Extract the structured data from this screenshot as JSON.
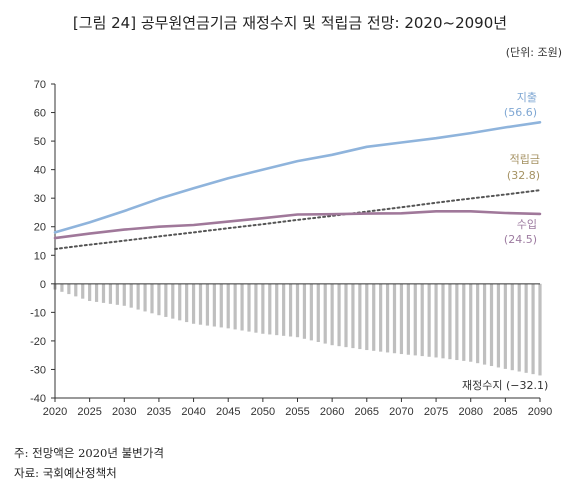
{
  "header": {
    "title": "[그림 24] 공무원연금기금 재정수지 및 적립금 전망: 2020~2090년",
    "unit": "(단위: 조원)"
  },
  "notes": {
    "note1": "주: 전망액은 2020년 불변가격",
    "note2": "자료: 국회예산정책처"
  },
  "colors": {
    "expenditure": "#8fb4dc",
    "revenue": "#a0789a",
    "reserve": "#555555",
    "balance": "#bfbfbf",
    "axis": "#333333",
    "label_expenditure": "#7fa7d3",
    "label_reserve": "#a59263",
    "label_revenue": "#9d7ba0"
  },
  "chart_data": {
    "type": "line",
    "title": "[그림 24] 공무원연금기금 재정수지 및 적립금 전망: 2020~2090년",
    "ylabel": "(단위: 조원)",
    "ylim": [
      -40,
      70
    ],
    "yticks": [
      70,
      60,
      50,
      40,
      30,
      20,
      10,
      0,
      -10,
      -20,
      -30,
      -40
    ],
    "xticks": [
      2020,
      2025,
      2030,
      2035,
      2040,
      2045,
      2050,
      2055,
      2060,
      2065,
      2070,
      2075,
      2080,
      2085,
      2090
    ],
    "grid": false,
    "x": [
      2020,
      2025,
      2030,
      2035,
      2040,
      2045,
      2050,
      2055,
      2060,
      2065,
      2070,
      2075,
      2080,
      2085,
      2090
    ],
    "series": [
      {
        "name": "지출",
        "style": "line",
        "values": [
          18.0,
          21.5,
          25.5,
          29.8,
          33.5,
          37.0,
          40.0,
          43.0,
          45.2,
          48.0,
          49.5,
          51.0,
          52.8,
          54.8,
          56.6
        ],
        "end_label": "지출",
        "end_value_label": "(56.6)"
      },
      {
        "name": "적립금",
        "style": "dotted",
        "values": [
          12.2,
          13.7,
          15.1,
          16.6,
          18.0,
          19.5,
          20.9,
          22.4,
          23.8,
          25.3,
          26.8,
          28.4,
          29.9,
          31.3,
          32.8
        ],
        "end_label": "적립금",
        "end_value_label": "(32.8)"
      },
      {
        "name": "수입",
        "style": "line",
        "values": [
          16.0,
          17.6,
          19.0,
          20.0,
          20.6,
          21.8,
          23.0,
          24.3,
          24.4,
          24.6,
          24.7,
          25.4,
          25.4,
          24.8,
          24.5
        ],
        "end_label": "수입",
        "end_value_label": "(24.5)"
      },
      {
        "name": "재정수지",
        "style": "bar",
        "values": [
          -2.0,
          -6.0,
          -7.7,
          -11.0,
          -14.0,
          -15.6,
          -17.5,
          -18.7,
          -21.5,
          -23.2,
          -24.6,
          -25.8,
          -27.3,
          -29.8,
          -32.1
        ],
        "end_label": "재정수지",
        "end_value_label": "(−32.1)"
      }
    ]
  }
}
